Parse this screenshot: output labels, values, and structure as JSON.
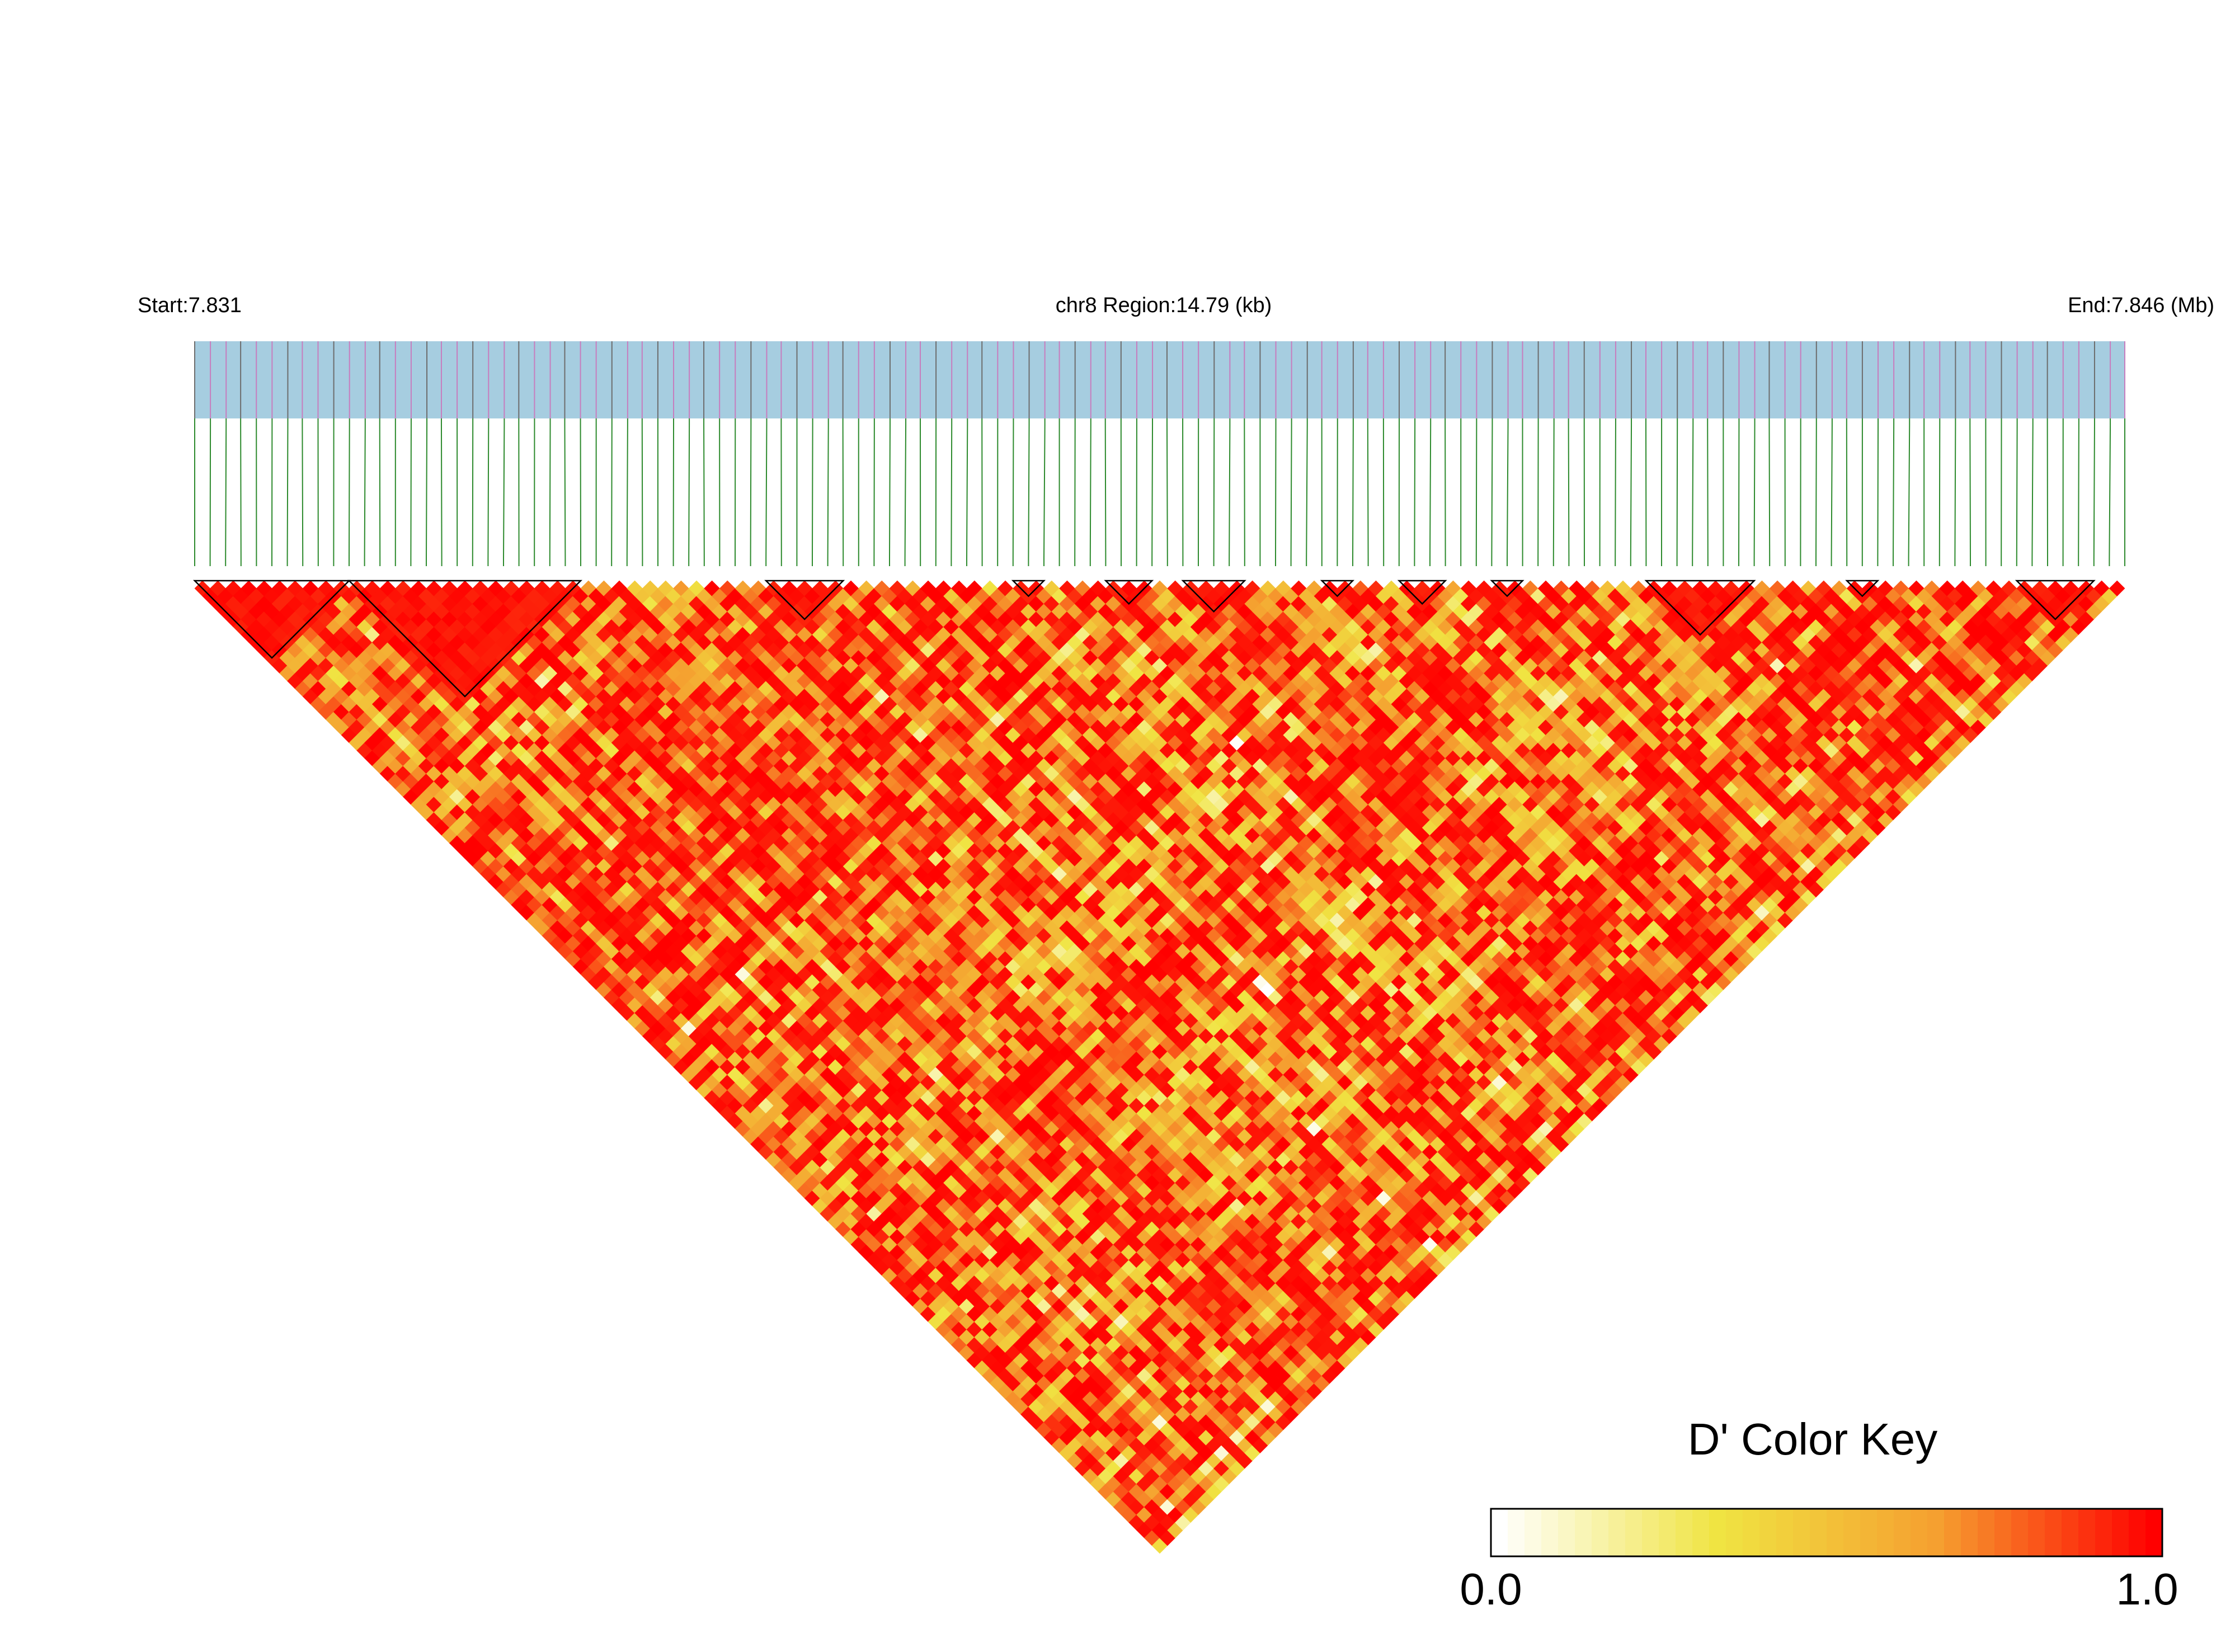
{
  "chart_data": {
    "type": "heatmap",
    "header": {
      "start_label": "Start:7.831",
      "region_label": "chr8 Region:14.79 (kb)",
      "end_label": "End:7.846 (Mb)"
    },
    "region": {
      "chromosome": "chr8",
      "start_mb": 7.831,
      "end_mb": 7.846,
      "length_kb": 14.79
    },
    "snp_count": 126,
    "snp_positions_mb": [
      7.831,
      7.83113,
      7.83126,
      7.83138,
      7.83151,
      7.83164,
      7.83177,
      7.83189,
      7.83202,
      7.83215,
      7.83228,
      7.83241,
      7.83253,
      7.83266,
      7.83279,
      7.83292,
      7.83304,
      7.83317,
      7.8333,
      7.83343,
      7.83356,
      7.83368,
      7.83381,
      7.83394,
      7.83406,
      7.83419,
      7.83432,
      7.83445,
      7.83458,
      7.8347,
      7.83483,
      7.83496,
      7.83509,
      7.83521,
      7.83534,
      7.83547,
      7.8356,
      7.83573,
      7.83585,
      7.83598,
      7.83611,
      7.83624,
      7.83636,
      7.83649,
      7.83662,
      7.83675,
      7.83688,
      7.837,
      7.83713,
      7.83726,
      7.83739,
      7.83751,
      7.83764,
      7.83777,
      7.8379,
      7.83803,
      7.83815,
      7.83828,
      7.83841,
      7.83853,
      7.83866,
      7.83879,
      7.83892,
      7.83904,
      7.83917,
      7.8393,
      7.83943,
      7.83956,
      7.83968,
      7.83981,
      7.83994,
      7.84007,
      7.8402,
      7.84032,
      7.84045,
      7.84058,
      7.8407,
      7.84083,
      7.84096,
      7.84109,
      7.84122,
      7.84134,
      7.84147,
      7.8416,
      7.84173,
      7.84186,
      7.84198,
      7.84211,
      7.84224,
      7.84236,
      7.84249,
      7.84262,
      7.84275,
      7.84288,
      7.843,
      7.84313,
      7.84326,
      7.84339,
      7.84351,
      7.84364,
      7.84377,
      7.8439,
      7.84402,
      7.84415,
      7.84428,
      7.84441,
      7.84454,
      7.84466,
      7.84479,
      7.84492,
      7.84505,
      7.84518,
      7.8453,
      7.84543,
      7.84556,
      7.84568,
      7.84581,
      7.84594,
      7.84607,
      7.8462,
      7.84632,
      7.84645,
      7.84658,
      7.84671,
      7.84684,
      7.84696
    ],
    "ld_blocks": [
      {
        "first_snp": 0,
        "last_snp": 10
      },
      {
        "first_snp": 10,
        "last_snp": 25
      },
      {
        "first_snp": 37,
        "last_snp": 42
      },
      {
        "first_snp": 53,
        "last_snp": 55
      },
      {
        "first_snp": 59,
        "last_snp": 62
      },
      {
        "first_snp": 64,
        "last_snp": 68
      },
      {
        "first_snp": 73,
        "last_snp": 75
      },
      {
        "first_snp": 78,
        "last_snp": 81
      },
      {
        "first_snp": 84,
        "last_snp": 86
      },
      {
        "first_snp": 94,
        "last_snp": 101
      },
      {
        "first_snp": 107,
        "last_snp": 109
      },
      {
        "first_snp": 118,
        "last_snp": 123
      }
    ],
    "color_key": {
      "title": "D' Color Key",
      "min_label": "0.0",
      "max_label": "1.0",
      "min": 0.0,
      "max": 1.0,
      "colors": [
        "#ffffff",
        "#f0e442",
        "#f5a030",
        "#ff0000"
      ]
    },
    "colors": {
      "gene_bar": "#a6cde0",
      "snp_marker": "#c77dbe",
      "connector": "#2d8a2d"
    },
    "grid": false
  }
}
